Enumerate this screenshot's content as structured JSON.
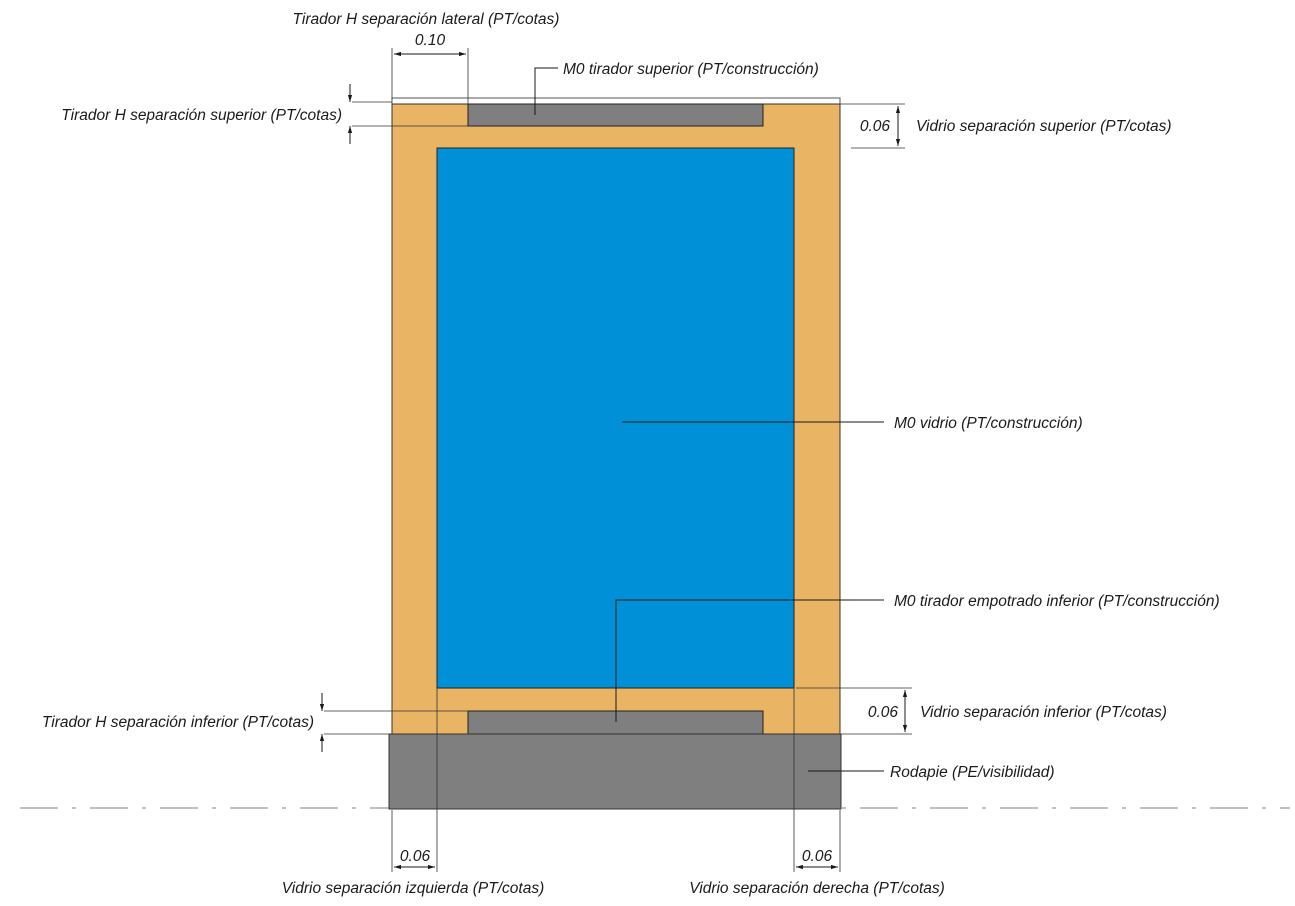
{
  "labels": {
    "tirador_lateral": "Tirador H separación lateral (PT/cotas)",
    "tirador_superior_sep": "Tirador H separación superior (PT/cotas)",
    "tirador_superior": "M0 tirador superior (PT/construcción)",
    "vidrio_sep_superior": "Vidrio separación superior (PT/cotas)",
    "vidrio": "M0 vidrio (PT/construcción)",
    "tirador_empotrado": "M0 tirador empotrado  inferior (PT/construcción)",
    "vidrio_sep_inferior": "Vidrio separación inferior (PT/cotas)",
    "tirador_inferior_sep": "Tirador H separación inferior (PT/cotas)",
    "rodapie": "Rodapie (PE/visibilidad)",
    "vidrio_sep_izquierda": "Vidrio separación izquierda (PT/cotas)",
    "vidrio_sep_derecha": "Vidrio separación derecha (PT/cotas)"
  },
  "dimensions": {
    "lateral": "0.10",
    "superior": "0.06",
    "inferior": "0.06",
    "izquierda": "0.06",
    "derecha": "0.06"
  },
  "colors": {
    "frame": "#e9b463",
    "glass": "#0090d8",
    "handle": "#7f7f7f",
    "baseboard": "#7f7f7f",
    "line": "#1a1a1a",
    "axis": "#9a9a9a"
  }
}
